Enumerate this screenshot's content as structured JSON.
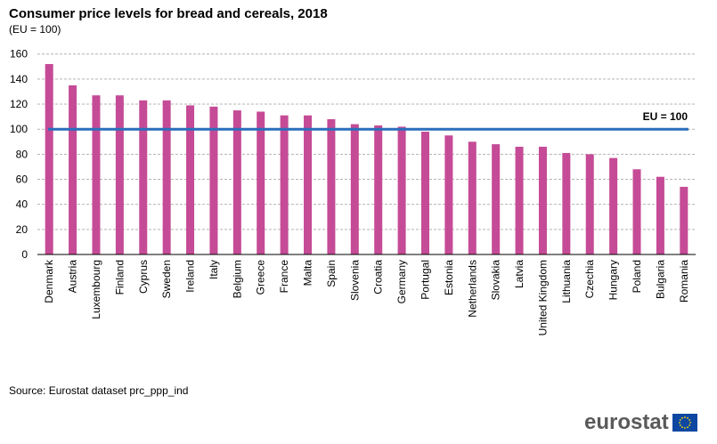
{
  "chart_data": {
    "type": "bar",
    "title": "Consumer price levels for bread and cereals, 2018",
    "subtitle": "(EU = 100)",
    "categories": [
      "Denmark",
      "Austria",
      "Luxembourg",
      "Finland",
      "Cyprus",
      "Sweden",
      "Ireland",
      "Italy",
      "Belgium",
      "Greece",
      "France",
      "Malta",
      "Spain",
      "Slovenia",
      "Croatia",
      "Germany",
      "Portugal",
      "Estonia",
      "Netherlands",
      "Slovakia",
      "Latvia",
      "United Kingdom",
      "Lithuania",
      "Czechia",
      "Hungary",
      "Poland",
      "Bulgaria",
      "Romania"
    ],
    "values": [
      152,
      135,
      127,
      127,
      123,
      123,
      119,
      118,
      115,
      114,
      111,
      111,
      108,
      104,
      103,
      102,
      98,
      95,
      90,
      88,
      86,
      86,
      81,
      80,
      77,
      68,
      62,
      54
    ],
    "ylim": [
      0,
      160
    ],
    "yticks": [
      0,
      20,
      40,
      60,
      80,
      100,
      120,
      140,
      160
    ],
    "grid": true,
    "reference_line": {
      "value": 100,
      "label": "EU = 100",
      "color": "#2a6ebb"
    },
    "bar_color": "#c54b96",
    "xlabel": "",
    "ylabel": ""
  },
  "source": "Source: Eurostat dataset prc_ppp_ind",
  "logo": {
    "text": "eurostat"
  }
}
